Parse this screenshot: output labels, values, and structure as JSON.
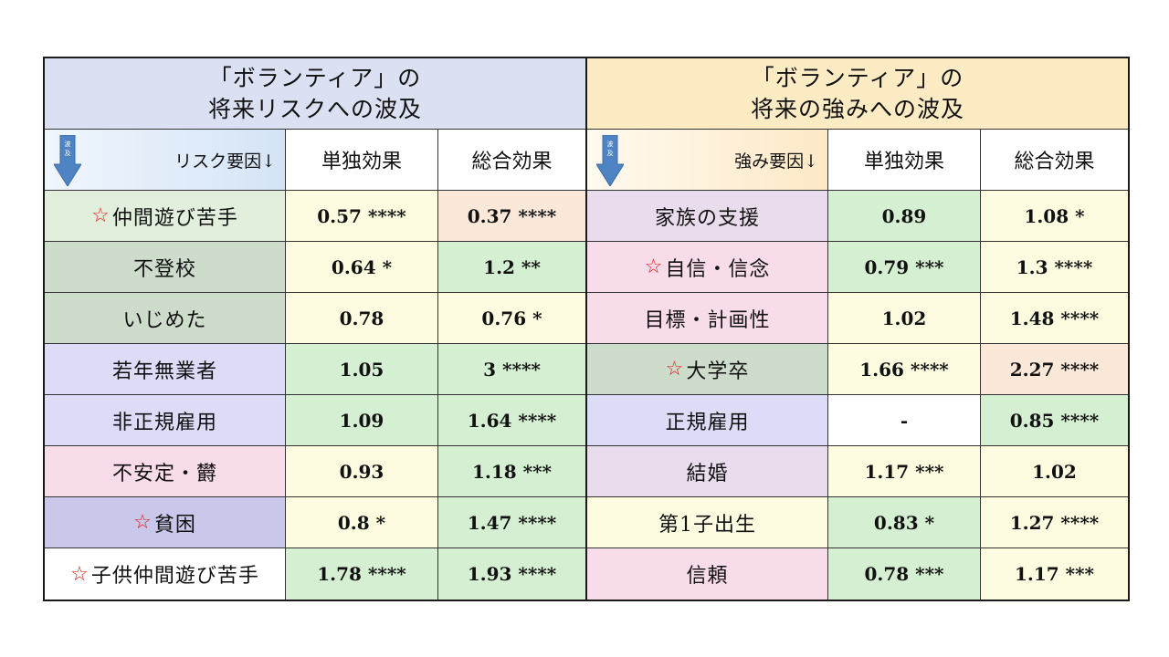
{
  "left": {
    "title_line1": "「ボランティア」の",
    "title_line2": "将来リスクへの波及",
    "title_bg": "#dbe0f2",
    "arrow_label": "波及",
    "header": {
      "factor": "リスク要因↓",
      "single": "単独効果",
      "total": "総合効果"
    },
    "rows": [
      {
        "star": "☆",
        "factor": "仲間遊び苦手",
        "single": "0.57 ****",
        "total": "0.37 ****",
        "factor_bg": "#e2efdc",
        "single_bg": "#fdfce0",
        "total_bg": "#fbe8d9"
      },
      {
        "star": "",
        "factor": "不登校",
        "single": "0.64 *",
        "total": "1.2 **",
        "factor_bg": "#cddccb",
        "single_bg": "#fdfce0",
        "total_bg": "#d5efd2"
      },
      {
        "star": "",
        "factor": "いじめた",
        "single": "0.78",
        "total": "0.76 *",
        "factor_bg": "#cddccb",
        "single_bg": "#fdfce0",
        "total_bg": "#fdfce0"
      },
      {
        "star": "",
        "factor": "若年無業者",
        "single": "1.05",
        "total": "3 ****",
        "factor_bg": "#dcdcf8",
        "single_bg": "#d5efd2",
        "total_bg": "#d5efd2"
      },
      {
        "star": "",
        "factor": "非正規雇用",
        "single": "1.09",
        "total": "1.64 ****",
        "factor_bg": "#dcdcf8",
        "single_bg": "#d5efd2",
        "total_bg": "#d5efd2"
      },
      {
        "star": "",
        "factor": "不安定・欝",
        "single": "0.93",
        "total": "1.18 ***",
        "factor_bg": "#f9dcea",
        "single_bg": "#fdfce0",
        "total_bg": "#d5efd2"
      },
      {
        "star": "☆",
        "factor": "貧困",
        "single": "0.8 *",
        "total": "1.47 ****",
        "factor_bg": "#c9c8ea",
        "single_bg": "#fdfce0",
        "total_bg": "#d5efd2"
      },
      {
        "star": "☆",
        "factor": "子供仲間遊び苦手",
        "single": "1.78 ****",
        "total": "1.93 ****",
        "factor_bg": "#ffffff",
        "single_bg": "#d5efd2",
        "total_bg": "#d5efd2"
      }
    ]
  },
  "right": {
    "title_line1": "「ボランティア」の",
    "title_line2": "将来の強みへの波及",
    "title_bg": "#fdebc4",
    "arrow_label": "波及",
    "header": {
      "factor": "強み要因↓",
      "single": "単独効果",
      "total": "総合効果"
    },
    "rows": [
      {
        "star": "",
        "factor": "家族の支援",
        "single": "0.89",
        "total": "1.08 *",
        "factor_bg": "#e9dced",
        "single_bg": "#d5efd2",
        "total_bg": "#fdfce0"
      },
      {
        "star": "☆",
        "factor": "自信・信念",
        "single": "0.79 ***",
        "total": "1.3 ****",
        "factor_bg": "#f9dcea",
        "single_bg": "#d5efd2",
        "total_bg": "#fdfce0"
      },
      {
        "star": "",
        "factor": "目標・計画性",
        "single": "1.02",
        "total": "1.48 ****",
        "factor_bg": "#f9dcea",
        "single_bg": "#fdfce0",
        "total_bg": "#fdfce0"
      },
      {
        "star": "☆",
        "factor": "大学卒",
        "single": "1.66 ****",
        "total": "2.27 ****",
        "factor_bg": "#cddccb",
        "single_bg": "#fdfce0",
        "total_bg": "#fbe8d9"
      },
      {
        "star": "",
        "factor": "正規雇用",
        "single": "-",
        "total": "0.85 ****",
        "factor_bg": "#dcdcf8",
        "single_bg": "#ffffff",
        "total_bg": "#d5efd2"
      },
      {
        "star": "",
        "factor": "結婚",
        "single": "1.17 ***",
        "total": "1.02",
        "factor_bg": "#e9dced",
        "single_bg": "#fdfce0",
        "total_bg": "#fdfce0"
      },
      {
        "star": "",
        "factor": "第1子出生",
        "single": "0.83 *",
        "total": "1.27 ****",
        "factor_bg": "#fdfce0",
        "single_bg": "#d5efd2",
        "total_bg": "#fdfce0"
      },
      {
        "star": "",
        "factor": "信頼",
        "single": "0.78 ***",
        "total": "1.17 ***",
        "factor_bg": "#f9dcea",
        "single_bg": "#d5efd2",
        "total_bg": "#fdfce0"
      }
    ]
  }
}
